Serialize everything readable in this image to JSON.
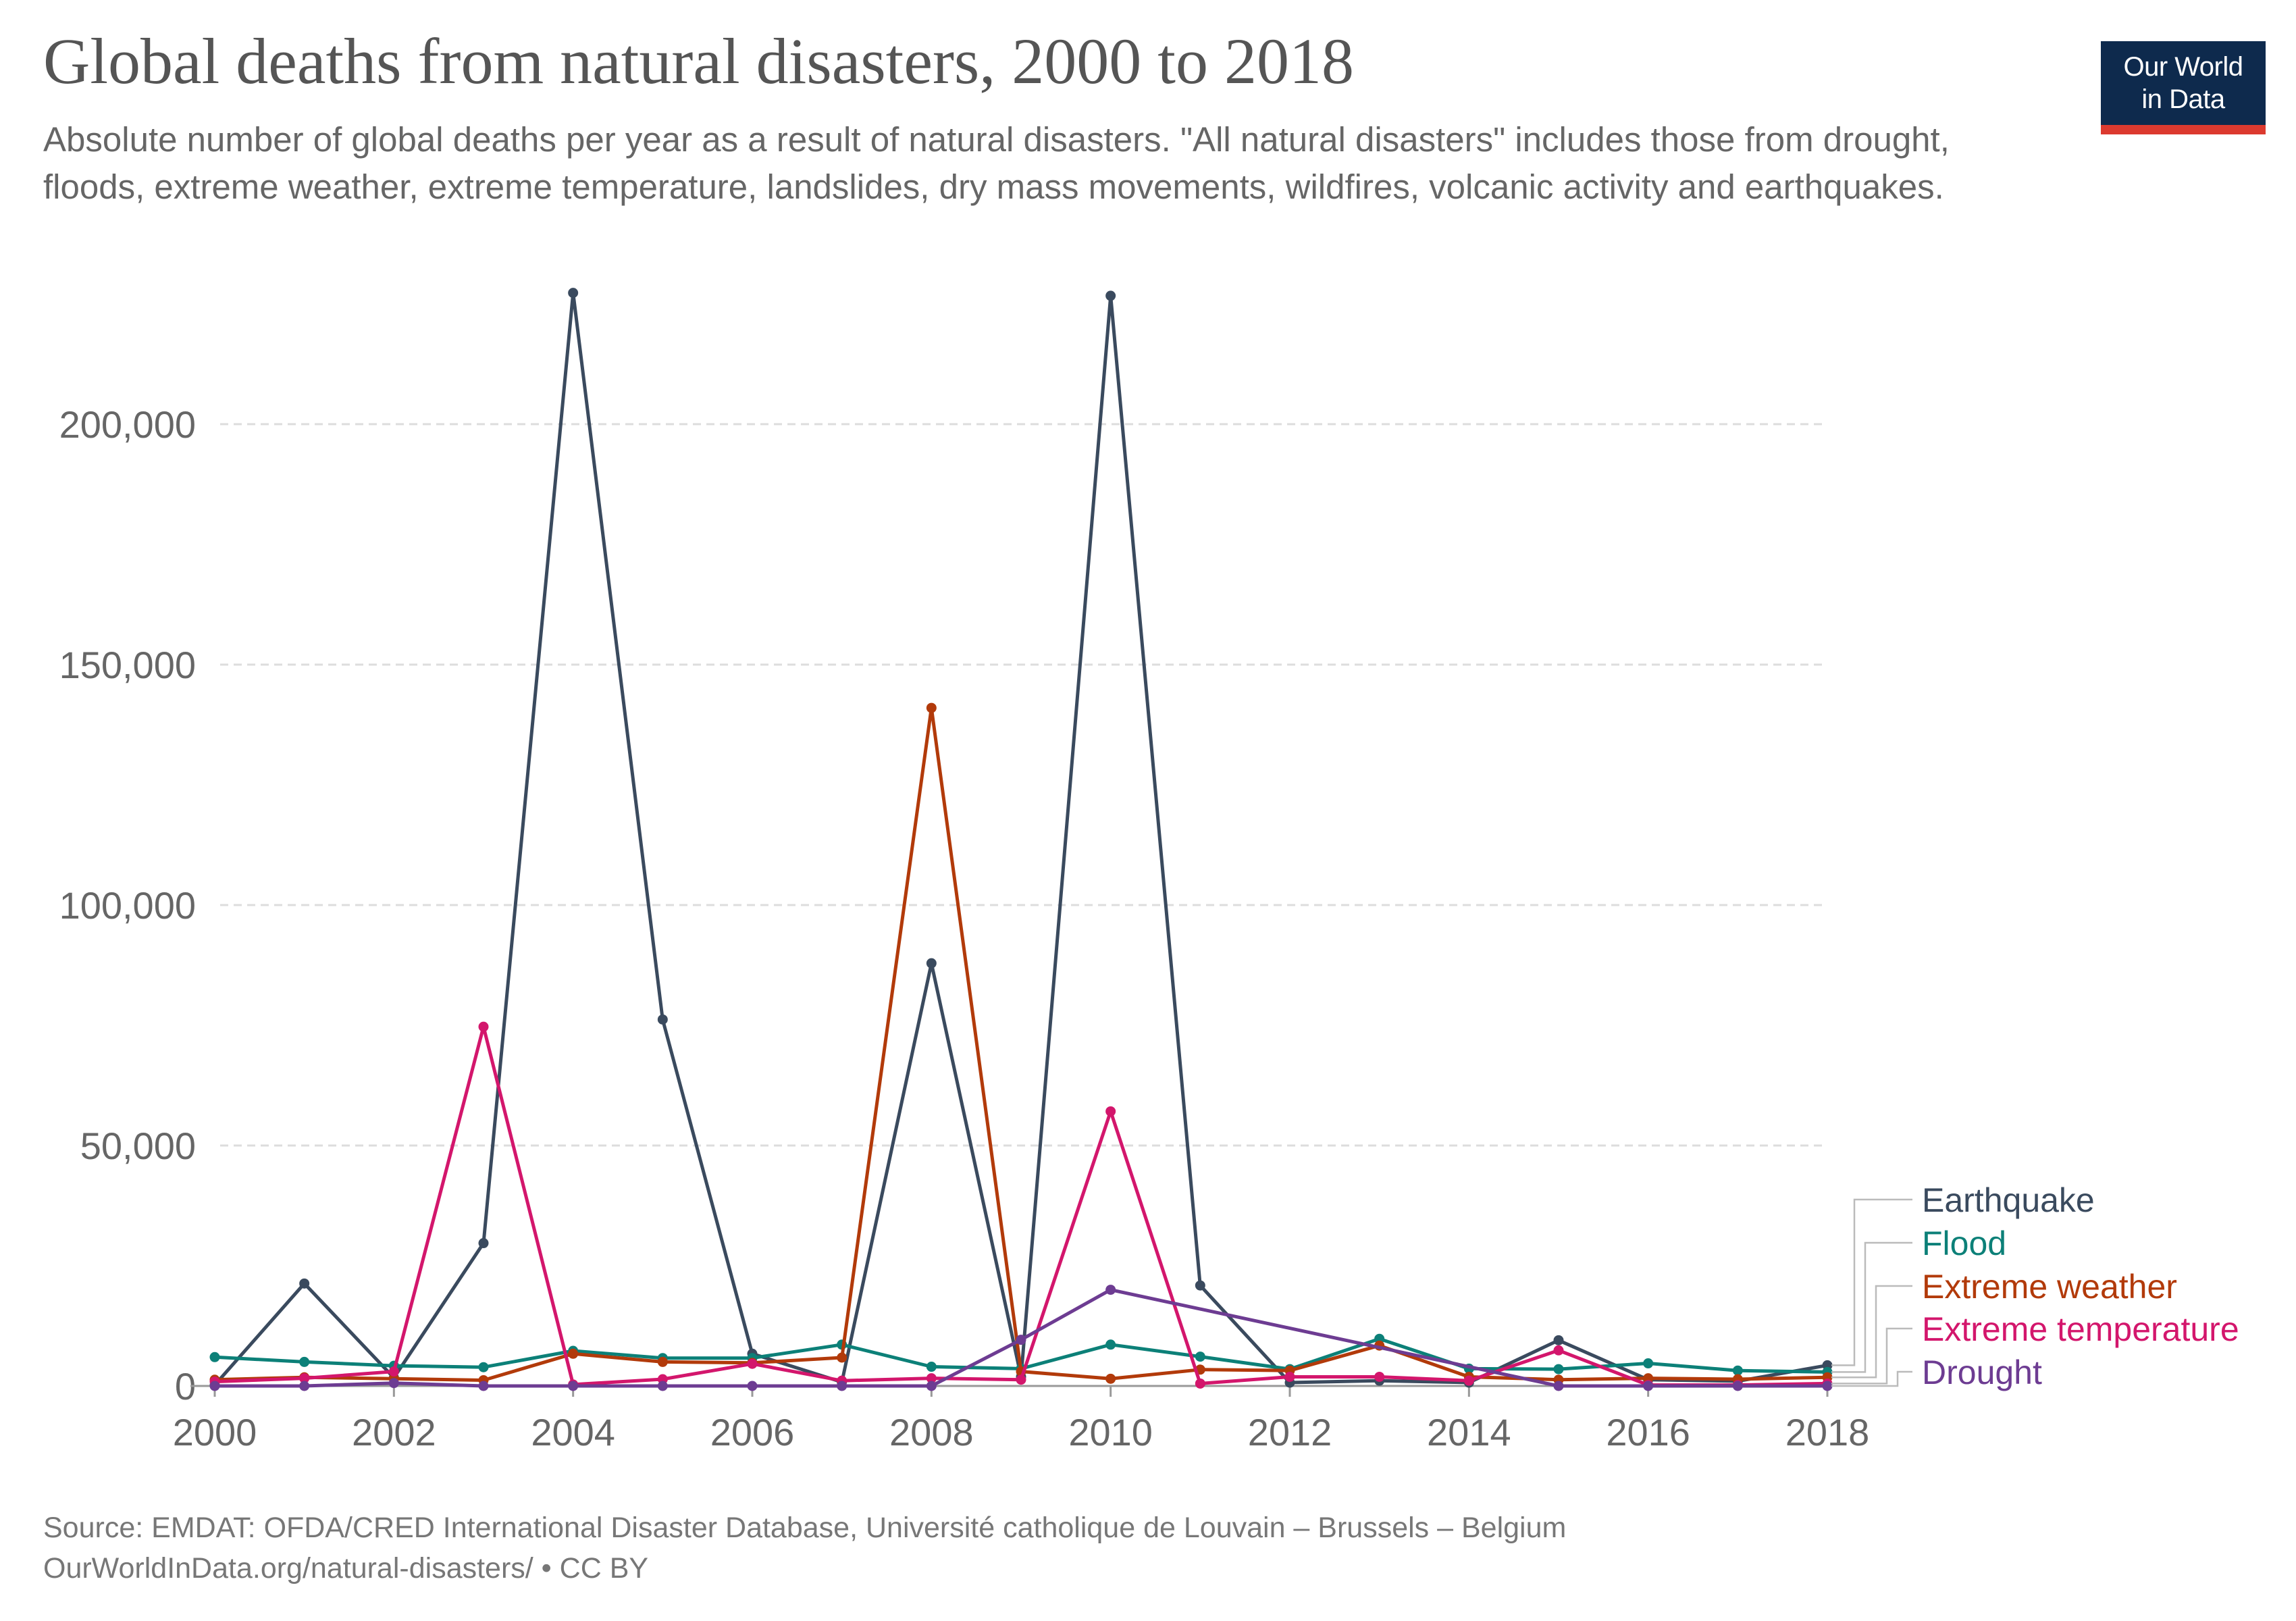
{
  "header": {
    "title": "Global deaths from natural disasters, 2000 to 2018",
    "subtitle": "Absolute number of global deaths per year as a result of natural disasters. \"All natural disasters\" includes those from drought, floods, extreme weather, extreme temperature, landslides, dry mass movements, wildfires, volcanic activity and earthquakes."
  },
  "logo": {
    "line1": "Our World",
    "line2": "in Data",
    "background": "#0e2a4d",
    "accent": "#dc3a2f"
  },
  "footer": {
    "source": "Source: EMDAT: OFDA/CRED International Disaster Database, Université catholique de Louvain – Brussels – Belgium",
    "url_license": "OurWorldInData.org/natural-disasters/ • CC BY"
  },
  "chart_data": {
    "type": "line",
    "x": [
      2000,
      2001,
      2002,
      2003,
      2004,
      2005,
      2006,
      2007,
      2008,
      2009,
      2010,
      2011,
      2012,
      2013,
      2014,
      2015,
      2016,
      2017,
      2018
    ],
    "xlim": [
      2000,
      2018
    ],
    "ylim": [
      0,
      230000
    ],
    "y_ticks": [
      0,
      50000,
      100000,
      150000,
      200000
    ],
    "y_tick_labels": [
      "0",
      "50,000",
      "100,000",
      "150,000",
      "200,000"
    ],
    "x_ticks": [
      2000,
      2002,
      2004,
      2006,
      2008,
      2010,
      2012,
      2014,
      2016,
      2018
    ],
    "x_tick_labels": [
      "2000",
      "2002",
      "2004",
      "2006",
      "2008",
      "2010",
      "2012",
      "2014",
      "2016",
      "2018"
    ],
    "grid": "horizontal dashed",
    "legend": "right, end of lines",
    "series": [
      {
        "name": "Earthquake",
        "color": "#3a4a5e",
        "values": [
          200,
          21300,
          1700,
          29700,
          227300,
          76200,
          6700,
          800,
          87900,
          1900,
          226700,
          20900,
          700,
          1100,
          700,
          9500,
          1300,
          1000,
          4300
        ]
      },
      {
        "name": "Flood",
        "color": "#0c8078",
        "values": [
          6000,
          5000,
          4200,
          3900,
          7300,
          5800,
          5800,
          8600,
          4000,
          3600,
          8600,
          6100,
          3500,
          9800,
          3600,
          3500,
          4700,
          3200,
          2900
        ]
      },
      {
        "name": "Extreme weather",
        "color": "#b23a0a",
        "values": [
          1300,
          1800,
          1500,
          1200,
          6700,
          5000,
          4800,
          5900,
          141000,
          3000,
          1500,
          3400,
          3200,
          8400,
          1900,
          1300,
          1600,
          1400,
          1800
        ]
      },
      {
        "name": "Extreme temperature",
        "color": "#d3166c",
        "values": [
          900,
          1600,
          3000,
          74700,
          300,
          1400,
          4600,
          1100,
          1600,
          1300,
          57100,
          500,
          1900,
          1900,
          1100,
          7400,
          200,
          200,
          500
        ]
      },
      {
        "name": "Drought",
        "color": "#6d3c92",
        "values": [
          0,
          0,
          600,
          0,
          0,
          0,
          0,
          0,
          0,
          9600,
          20000,
          null,
          null,
          null,
          null,
          0,
          0,
          0,
          0
        ]
      }
    ]
  }
}
